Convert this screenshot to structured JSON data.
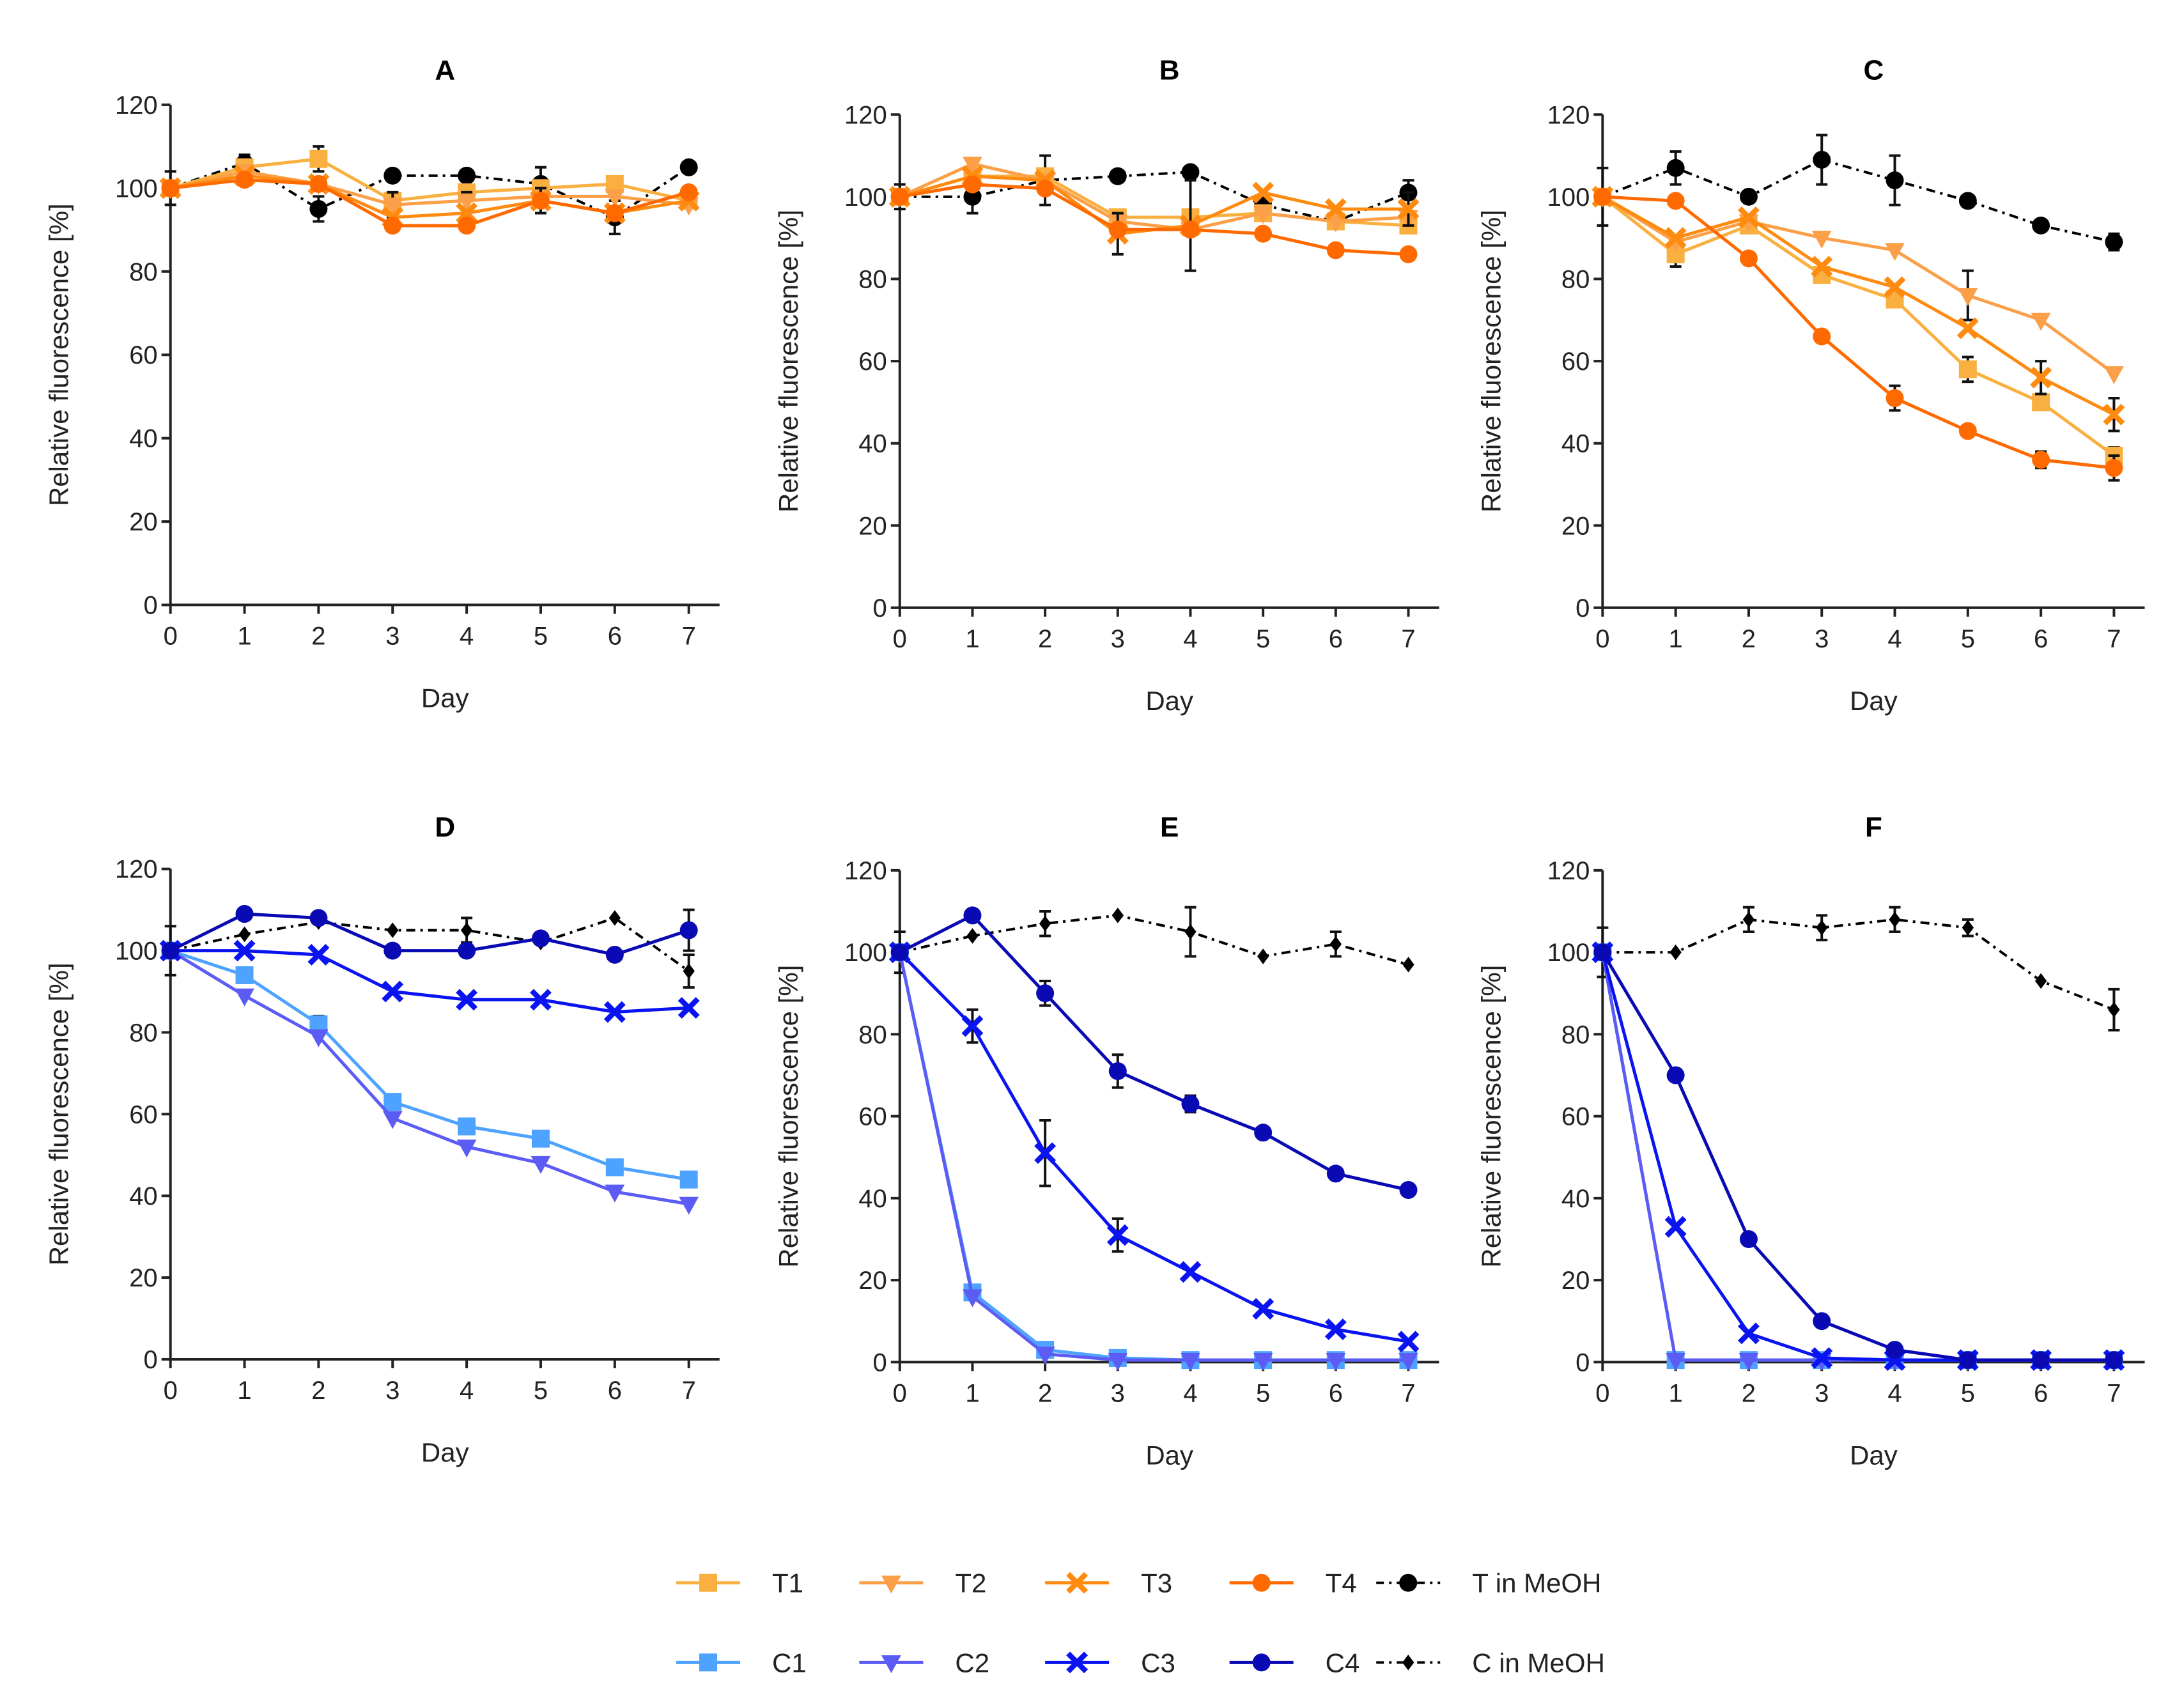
{
  "figure": {
    "legend": {
      "rows": [
        [
          "T1",
          "T2",
          "T3",
          "T4",
          "T_MeOH"
        ],
        [
          "C1",
          "C2",
          "C3",
          "C4",
          "C_MeOH"
        ]
      ]
    }
  },
  "series_styles": {
    "T1": {
      "label": "T1",
      "color": "#F9B040",
      "marker": "square",
      "dash": "solid"
    },
    "T2": {
      "label": "T2",
      "color": "#FBA048",
      "marker": "triangle-down",
      "dash": "solid"
    },
    "T3": {
      "label": "T3",
      "color": "#FF8A10",
      "marker": "x",
      "dash": "solid"
    },
    "T4": {
      "label": "T4",
      "color": "#FF6A00",
      "marker": "circle",
      "dash": "solid"
    },
    "T_MeOH": {
      "label": "T in MeOH",
      "color": "#000000",
      "marker": "circle",
      "dash": "dashdot"
    },
    "C1": {
      "label": "C1",
      "color": "#4DA3FF",
      "marker": "square",
      "dash": "solid"
    },
    "C2": {
      "label": "C2",
      "color": "#5C5CF5",
      "marker": "triangle-down",
      "dash": "solid"
    },
    "C3": {
      "label": "C3",
      "color": "#0A14F0",
      "marker": "x",
      "dash": "solid"
    },
    "C4": {
      "label": "C4",
      "color": "#0A0AB4",
      "marker": "circle",
      "dash": "solid"
    },
    "C_MeOH": {
      "label": "C in MeOH",
      "color": "#000000",
      "marker": "diamond",
      "dash": "dashdot"
    }
  },
  "chart_data": [
    {
      "type": "line",
      "title": "A",
      "xlabel": "Day",
      "ylabel": "Relative fluorescence [%]",
      "x": [
        0,
        1,
        2,
        3,
        4,
        5,
        6,
        7
      ],
      "xlim": [
        0,
        7
      ],
      "ylim": [
        0,
        120
      ],
      "yticks": [
        0,
        20,
        40,
        60,
        80,
        100,
        120
      ],
      "xticks": [
        0,
        1,
        2,
        3,
        4,
        5,
        6,
        7
      ],
      "grid": false,
      "series": [
        {
          "key": "T_MeOH",
          "values": [
            100,
            106,
            95,
            103,
            103,
            101,
            93,
            105
          ],
          "err": [
            4,
            2,
            3,
            0,
            0,
            4,
            4,
            0
          ]
        },
        {
          "key": "T1",
          "values": [
            100,
            105,
            107,
            97,
            99,
            100,
            101,
            97
          ],
          "err": [
            0,
            0,
            3,
            0,
            0,
            0,
            0,
            0
          ]
        },
        {
          "key": "T2",
          "values": [
            100,
            104,
            101,
            96,
            97,
            98,
            98,
            96
          ],
          "err": [
            0,
            0,
            0,
            3,
            2,
            0,
            0,
            0
          ]
        },
        {
          "key": "T3",
          "values": [
            100,
            103,
            101,
            93,
            94,
            97,
            94,
            97
          ],
          "err": [
            0,
            0,
            0,
            0,
            0,
            3,
            0,
            0
          ]
        },
        {
          "key": "T4",
          "values": [
            100,
            102,
            101,
            91,
            91,
            97,
            94,
            99
          ],
          "err": [
            0,
            0,
            0,
            0,
            0,
            0,
            0,
            0
          ]
        }
      ]
    },
    {
      "type": "line",
      "title": "B",
      "xlabel": "Day",
      "ylabel": "Relative fluorescence [%]",
      "x": [
        0,
        1,
        2,
        3,
        4,
        5,
        6,
        7
      ],
      "xlim": [
        0,
        7
      ],
      "ylim": [
        0,
        120
      ],
      "yticks": [
        0,
        20,
        40,
        60,
        80,
        100,
        120
      ],
      "xticks": [
        0,
        1,
        2,
        3,
        4,
        5,
        6,
        7
      ],
      "grid": false,
      "series": [
        {
          "key": "T_MeOH",
          "values": [
            100,
            100,
            104,
            105,
            106,
            98,
            94,
            101
          ],
          "err": [
            3,
            4,
            6,
            0,
            0,
            0,
            0,
            3
          ]
        },
        {
          "key": "T1",
          "values": [
            100,
            105,
            105,
            95,
            95,
            96,
            94,
            93
          ],
          "err": [
            0,
            0,
            0,
            0,
            0,
            0,
            0,
            0
          ]
        },
        {
          "key": "T2",
          "values": [
            100,
            108,
            104,
            94,
            92,
            96,
            94,
            95
          ],
          "err": [
            0,
            0,
            0,
            0,
            0,
            0,
            0,
            0
          ]
        },
        {
          "key": "T3",
          "values": [
            100,
            105,
            104,
            91,
            93,
            101,
            97,
            97
          ],
          "err": [
            0,
            0,
            0,
            5,
            11,
            0,
            0,
            4
          ]
        },
        {
          "key": "T4",
          "values": [
            100,
            103,
            102,
            92,
            92,
            91,
            87,
            86
          ],
          "err": [
            0,
            0,
            0,
            0,
            0,
            0,
            0,
            0
          ]
        }
      ]
    },
    {
      "type": "line",
      "title": "C",
      "xlabel": "Day",
      "ylabel": "Relative fluorescence [%]",
      "x": [
        0,
        1,
        2,
        3,
        4,
        5,
        6,
        7
      ],
      "xlim": [
        0,
        7
      ],
      "ylim": [
        0,
        120
      ],
      "yticks": [
        0,
        20,
        40,
        60,
        80,
        100,
        120
      ],
      "xticks": [
        0,
        1,
        2,
        3,
        4,
        5,
        6,
        7
      ],
      "grid": false,
      "series": [
        {
          "key": "T_MeOH",
          "values": [
            100,
            107,
            100,
            109,
            104,
            99,
            93,
            89
          ],
          "err": [
            7,
            4,
            0,
            6,
            6,
            0,
            0,
            2
          ]
        },
        {
          "key": "T1",
          "values": [
            100,
            86,
            93,
            81,
            75,
            58,
            50,
            37
          ],
          "err": [
            0,
            3,
            0,
            0,
            0,
            3,
            0,
            2
          ]
        },
        {
          "key": "T2",
          "values": [
            100,
            89,
            94,
            90,
            87,
            76,
            70,
            57
          ],
          "err": [
            0,
            0,
            0,
            0,
            0,
            6,
            0,
            0
          ]
        },
        {
          "key": "T3",
          "values": [
            100,
            90,
            95,
            83,
            78,
            68,
            56,
            47
          ],
          "err": [
            0,
            0,
            0,
            0,
            0,
            0,
            4,
            4
          ]
        },
        {
          "key": "T4",
          "values": [
            100,
            99,
            85,
            66,
            51,
            43,
            36,
            34
          ],
          "err": [
            0,
            0,
            0,
            0,
            3,
            0,
            2,
            3
          ]
        }
      ]
    },
    {
      "type": "line",
      "title": "D",
      "xlabel": "Day",
      "ylabel": "Relative fluorescence [%]",
      "x": [
        0,
        1,
        2,
        3,
        4,
        5,
        6,
        7
      ],
      "xlim": [
        0,
        7
      ],
      "ylim": [
        0,
        120
      ],
      "yticks": [
        0,
        20,
        40,
        60,
        80,
        100,
        120
      ],
      "xticks": [
        0,
        1,
        2,
        3,
        4,
        5,
        6,
        7
      ],
      "grid": false,
      "series": [
        {
          "key": "C_MeOH",
          "values": [
            100,
            104,
            107,
            105,
            105,
            102,
            108,
            95
          ],
          "err": [
            6,
            0,
            0,
            0,
            3,
            0,
            0,
            4
          ]
        },
        {
          "key": "C1",
          "values": [
            100,
            94,
            82,
            63,
            57,
            54,
            47,
            44
          ],
          "err": [
            0,
            0,
            2,
            0,
            0,
            0,
            0,
            0
          ]
        },
        {
          "key": "C2",
          "values": [
            100,
            89,
            79,
            59,
            52,
            48,
            41,
            38
          ],
          "err": [
            0,
            0,
            0,
            0,
            0,
            0,
            0,
            0
          ]
        },
        {
          "key": "C3",
          "values": [
            100,
            100,
            99,
            90,
            88,
            88,
            85,
            86
          ],
          "err": [
            0,
            0,
            0,
            0,
            0,
            0,
            0,
            0
          ]
        },
        {
          "key": "C4",
          "values": [
            100,
            109,
            108,
            100,
            100,
            103,
            99,
            105
          ],
          "err": [
            0,
            0,
            0,
            0,
            0,
            0,
            0,
            5
          ]
        }
      ]
    },
    {
      "type": "line",
      "title": "E",
      "xlabel": "Day",
      "ylabel": "Relative fluorescence [%]",
      "x": [
        0,
        1,
        2,
        3,
        4,
        5,
        6,
        7
      ],
      "xlim": [
        0,
        7
      ],
      "ylim": [
        0,
        120
      ],
      "yticks": [
        0,
        20,
        40,
        60,
        80,
        100,
        120
      ],
      "xticks": [
        0,
        1,
        2,
        3,
        4,
        5,
        6,
        7
      ],
      "grid": false,
      "series": [
        {
          "key": "C_MeOH",
          "values": [
            100,
            104,
            107,
            109,
            105,
            99,
            102,
            97
          ],
          "err": [
            5,
            0,
            3,
            0,
            6,
            0,
            3,
            0
          ]
        },
        {
          "key": "C1",
          "values": [
            100,
            17,
            3,
            1,
            0.5,
            0.5,
            0.5,
            0.5
          ],
          "err": [
            0,
            0,
            0,
            0,
            0,
            0,
            0,
            0
          ]
        },
        {
          "key": "C2",
          "values": [
            100,
            16,
            2,
            0.5,
            0.5,
            0.5,
            0.5,
            0.5
          ],
          "err": [
            0,
            0,
            0,
            0,
            0,
            0,
            0,
            0
          ]
        },
        {
          "key": "C3",
          "values": [
            100,
            82,
            51,
            31,
            22,
            13,
            8,
            5
          ],
          "err": [
            0,
            4,
            8,
            4,
            0,
            0,
            0,
            0
          ]
        },
        {
          "key": "C4",
          "values": [
            100,
            109,
            90,
            71,
            63,
            56,
            46,
            42
          ],
          "err": [
            0,
            0,
            3,
            4,
            2,
            0,
            0,
            0
          ]
        }
      ]
    },
    {
      "type": "line",
      "title": "F",
      "xlabel": "Day",
      "ylabel": "Relative fluorescence [%]",
      "x": [
        0,
        1,
        2,
        3,
        4,
        5,
        6,
        7
      ],
      "xlim": [
        0,
        7
      ],
      "ylim": [
        0,
        120
      ],
      "yticks": [
        0,
        20,
        40,
        60,
        80,
        100,
        120
      ],
      "xticks": [
        0,
        1,
        2,
        3,
        4,
        5,
        6,
        7
      ],
      "grid": false,
      "series": [
        {
          "key": "C_MeOH",
          "values": [
            100,
            100,
            108,
            106,
            108,
            106,
            93,
            86
          ],
          "err": [
            6,
            0,
            3,
            3,
            3,
            2,
            0,
            5
          ]
        },
        {
          "key": "C1",
          "values": [
            100,
            0.5,
            0.5,
            0.5,
            0.5,
            0.5,
            0.5,
            0.5
          ],
          "err": [
            0,
            0,
            0,
            0,
            0,
            0,
            0,
            0
          ]
        },
        {
          "key": "C2",
          "values": [
            100,
            0.5,
            0.5,
            0.5,
            0.5,
            0.5,
            0.5,
            0.5
          ],
          "err": [
            0,
            0,
            0,
            0,
            0,
            0,
            0,
            0
          ]
        },
        {
          "key": "C3",
          "values": [
            100,
            33,
            7,
            1,
            0.5,
            0.5,
            0.5,
            0.5
          ],
          "err": [
            0,
            0,
            0,
            0,
            0,
            0,
            0,
            0
          ]
        },
        {
          "key": "C4",
          "values": [
            100,
            70,
            30,
            10,
            3,
            0.5,
            0.5,
            0.5
          ],
          "err": [
            0,
            0,
            0,
            0,
            0,
            0,
            0,
            0
          ]
        }
      ]
    }
  ]
}
